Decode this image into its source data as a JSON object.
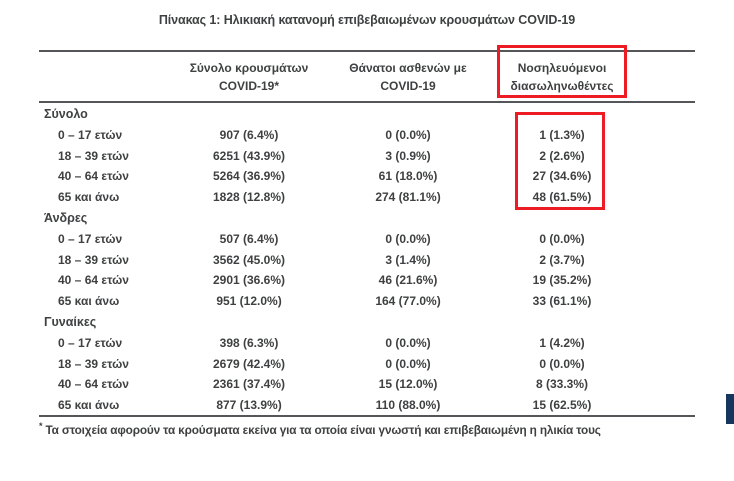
{
  "title": "Πίνακας 1: Ηλικιακή κατανομή επιβεβαιωμένων κρουσμάτων COVID-19",
  "highlight_color": "#ed1c24",
  "accent_bar_color": "#17365d",
  "table": {
    "headers": [
      {
        "line1": "Σύνολο κρουσμάτων",
        "line2": "COVID-19*"
      },
      {
        "line1": "Θάνατοι ασθενών με",
        "line2": "COVID-19"
      },
      {
        "line1": "Νοσηλευόμενοι",
        "line2": "διασωληνωθέντες"
      }
    ],
    "groups": [
      {
        "label": "Σύνολο",
        "rows": [
          {
            "label": "0 – 17 ετών",
            "cases": "907 (6.4%)",
            "deaths": "0 (0.0%)",
            "intubated": "1 (1.3%)"
          },
          {
            "label": "18 – 39 ετών",
            "cases": "6251 (43.9%)",
            "deaths": "3 (0.9%)",
            "intubated": "2 (2.6%)"
          },
          {
            "label": "40 – 64 ετών",
            "cases": "5264 (36.9%)",
            "deaths": "61 (18.0%)",
            "intubated": "27 (34.6%)"
          },
          {
            "label": "65 και άνω",
            "cases": "1828 (12.8%)",
            "deaths": "274 (81.1%)",
            "intubated": "48 (61.5%)"
          }
        ]
      },
      {
        "label": "Άνδρες",
        "rows": [
          {
            "label": "0 – 17 ετών",
            "cases": "507 (6.4%)",
            "deaths": "0 (0.0%)",
            "intubated": "0 (0.0%)"
          },
          {
            "label": "18 – 39 ετών",
            "cases": "3562 (45.0%)",
            "deaths": "3 (1.4%)",
            "intubated": "2 (3.7%)"
          },
          {
            "label": "40 – 64 ετών",
            "cases": "2901 (36.6%)",
            "deaths": "46 (21.6%)",
            "intubated": "19 (35.2%)"
          },
          {
            "label": "65 και άνω",
            "cases": "951 (12.0%)",
            "deaths": "164 (77.0%)",
            "intubated": "33 (61.1%)"
          }
        ]
      },
      {
        "label": "Γυναίκες",
        "rows": [
          {
            "label": "0 – 17 ετών",
            "cases": "398 (6.3%)",
            "deaths": "0 (0.0%)",
            "intubated": "1 (4.2%)"
          },
          {
            "label": "18 – 39 ετών",
            "cases": "2679 (42.4%)",
            "deaths": "0 (0.0%)",
            "intubated": "0 (0.0%)"
          },
          {
            "label": "40 – 64 ετών",
            "cases": "2361 (37.4%)",
            "deaths": "15 (12.0%)",
            "intubated": "8 (33.3%)"
          },
          {
            "label": "65 και άνω",
            "cases": "877 (13.9%)",
            "deaths": "110 (88.0%)",
            "intubated": "15 (62.5%)"
          }
        ]
      }
    ],
    "footnote_marker": "*",
    "footnote": "Τα στοιχεία αφορούν τα κρούσματα εκείνα για τα οποία είναι γνωστή και επιβεβαιωμένη η ηλικία τους"
  }
}
